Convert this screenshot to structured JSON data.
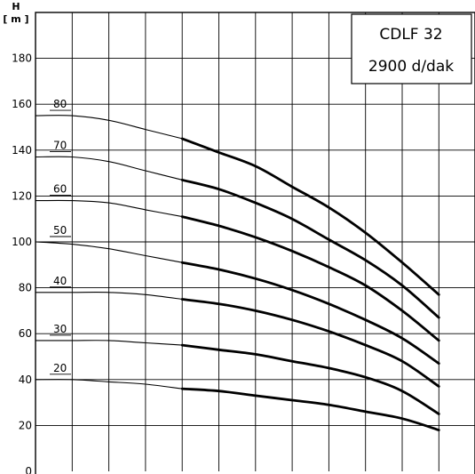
{
  "chart_data": {
    "type": "line",
    "title": "",
    "model": "CDLF 32",
    "speed": "2900 d/dak",
    "ylabel_top": "H",
    "ylabel_unit": "[ m ]",
    "ylim": [
      0,
      200
    ],
    "yticks": [
      0,
      20,
      40,
      60,
      80,
      100,
      120,
      140,
      160,
      180
    ],
    "x_grid_columns": 12,
    "grid": true,
    "thick_start_column": 4,
    "series": [
      {
        "name": "20",
        "values": [
          40,
          40,
          39,
          38,
          36,
          35,
          33,
          31,
          29,
          26,
          23,
          18
        ]
      },
      {
        "name": "30",
        "values": [
          57,
          57,
          57,
          56,
          55,
          53,
          51,
          48,
          45,
          41,
          35,
          25
        ]
      },
      {
        "name": "40",
        "values": [
          78,
          78,
          78,
          77,
          75,
          73,
          70,
          66,
          61,
          55,
          48,
          37
        ]
      },
      {
        "name": "50",
        "values": [
          100,
          99,
          97,
          94,
          91,
          88,
          84,
          79,
          73,
          66,
          58,
          47
        ]
      },
      {
        "name": "60",
        "values": [
          118,
          118,
          117,
          114,
          111,
          107,
          102,
          96,
          89,
          81,
          70,
          57
        ]
      },
      {
        "name": "70",
        "values": [
          137,
          137,
          135,
          131,
          127,
          123,
          117,
          110,
          101,
          92,
          81,
          67
        ]
      },
      {
        "name": "80",
        "values": [
          155,
          155,
          153,
          149,
          145,
          139,
          133,
          124,
          115,
          104,
          91,
          77
        ]
      }
    ]
  }
}
